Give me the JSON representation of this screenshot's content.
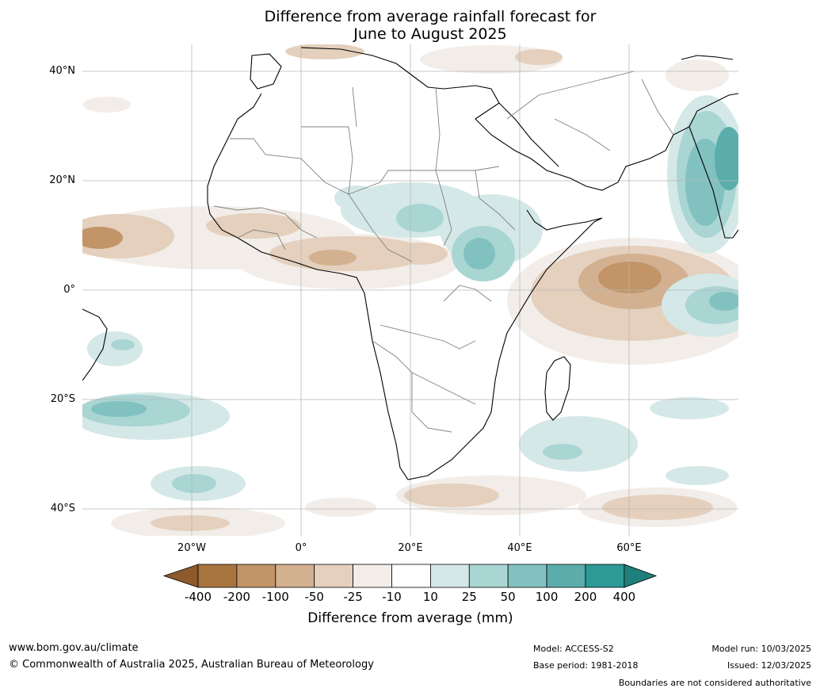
{
  "title_line1": "Difference from average rainfall forecast for",
  "title_line2": "June to August 2025",
  "lat_labels": [
    "40°N",
    "20°N",
    "0°",
    "20°S",
    "40°S"
  ],
  "lon_labels": [
    "20°W",
    "0°",
    "20°E",
    "40°E",
    "60°E"
  ],
  "colorbar": {
    "ticks": [
      "-400",
      "-200",
      "-100",
      "-50",
      "-25",
      "-10",
      "10",
      "25",
      "50",
      "100",
      "200",
      "400"
    ],
    "colors": [
      "#a87440",
      "#c29468",
      "#d3b190",
      "#e4d0bd",
      "#f2ede8",
      "#ffffff",
      "#d4e8e7",
      "#a9d5d3",
      "#81c2c1",
      "#5aadab",
      "#2e9a96"
    ],
    "low_extend_color": "#8c5a2b",
    "high_extend_color": "#1f7f7b",
    "label": "Difference from average (mm)"
  },
  "footer": {
    "url": "www.bom.gov.au/climate",
    "copyright": "© Commonwealth of Australia 2025, Australian Bureau of Meteorology",
    "model": "Model: ACCESS-S2",
    "base_period": "Base period: 1981-2018",
    "model_run": "Model run: 10/03/2025",
    "issued": "Issued: 12/03/2025",
    "boundaries_note": "Boundaries are not considered authoritative"
  }
}
